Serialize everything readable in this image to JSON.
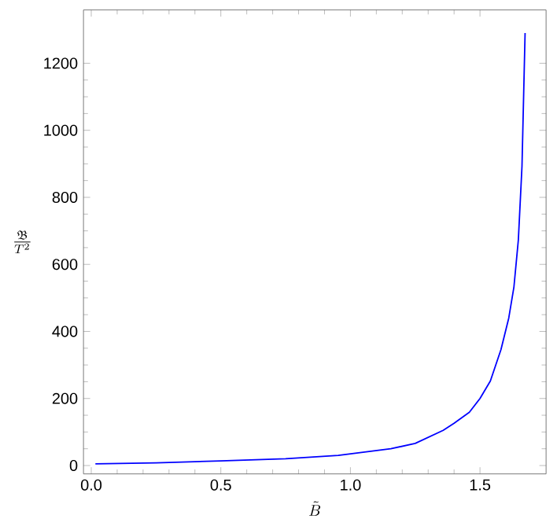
{
  "chart_data": {
    "type": "line",
    "xlabel": "\\tilde{B}",
    "ylabel": "\\frac{\\mathfrak{B}}{T^2}",
    "x": [
      0.016,
      0.25,
      0.5,
      0.75,
      0.953,
      1.156,
      1.25,
      1.358,
      1.4,
      1.459,
      1.5,
      1.54,
      1.581,
      1.611,
      1.631,
      1.648,
      1.662,
      1.674
    ],
    "series": [
      {
        "color": "#0000ff",
        "values": [
          5,
          8,
          14,
          20,
          30,
          50,
          66,
          105,
          126,
          159,
          200,
          252,
          346,
          440,
          533,
          673,
          892,
          1290
        ]
      }
    ],
    "xlim": [
      -0.03,
      1.755
    ],
    "ylim": [
      -25,
      1359
    ],
    "xticks": [
      {
        "value": 0,
        "label": "0.0"
      },
      0.5,
      {
        "value": 1,
        "label": "1.0"
      },
      1.5
    ],
    "yticks": [
      0,
      200,
      400,
      600,
      800,
      1000,
      1200
    ],
    "grid": false,
    "marker": "none",
    "line_style": "solid"
  }
}
